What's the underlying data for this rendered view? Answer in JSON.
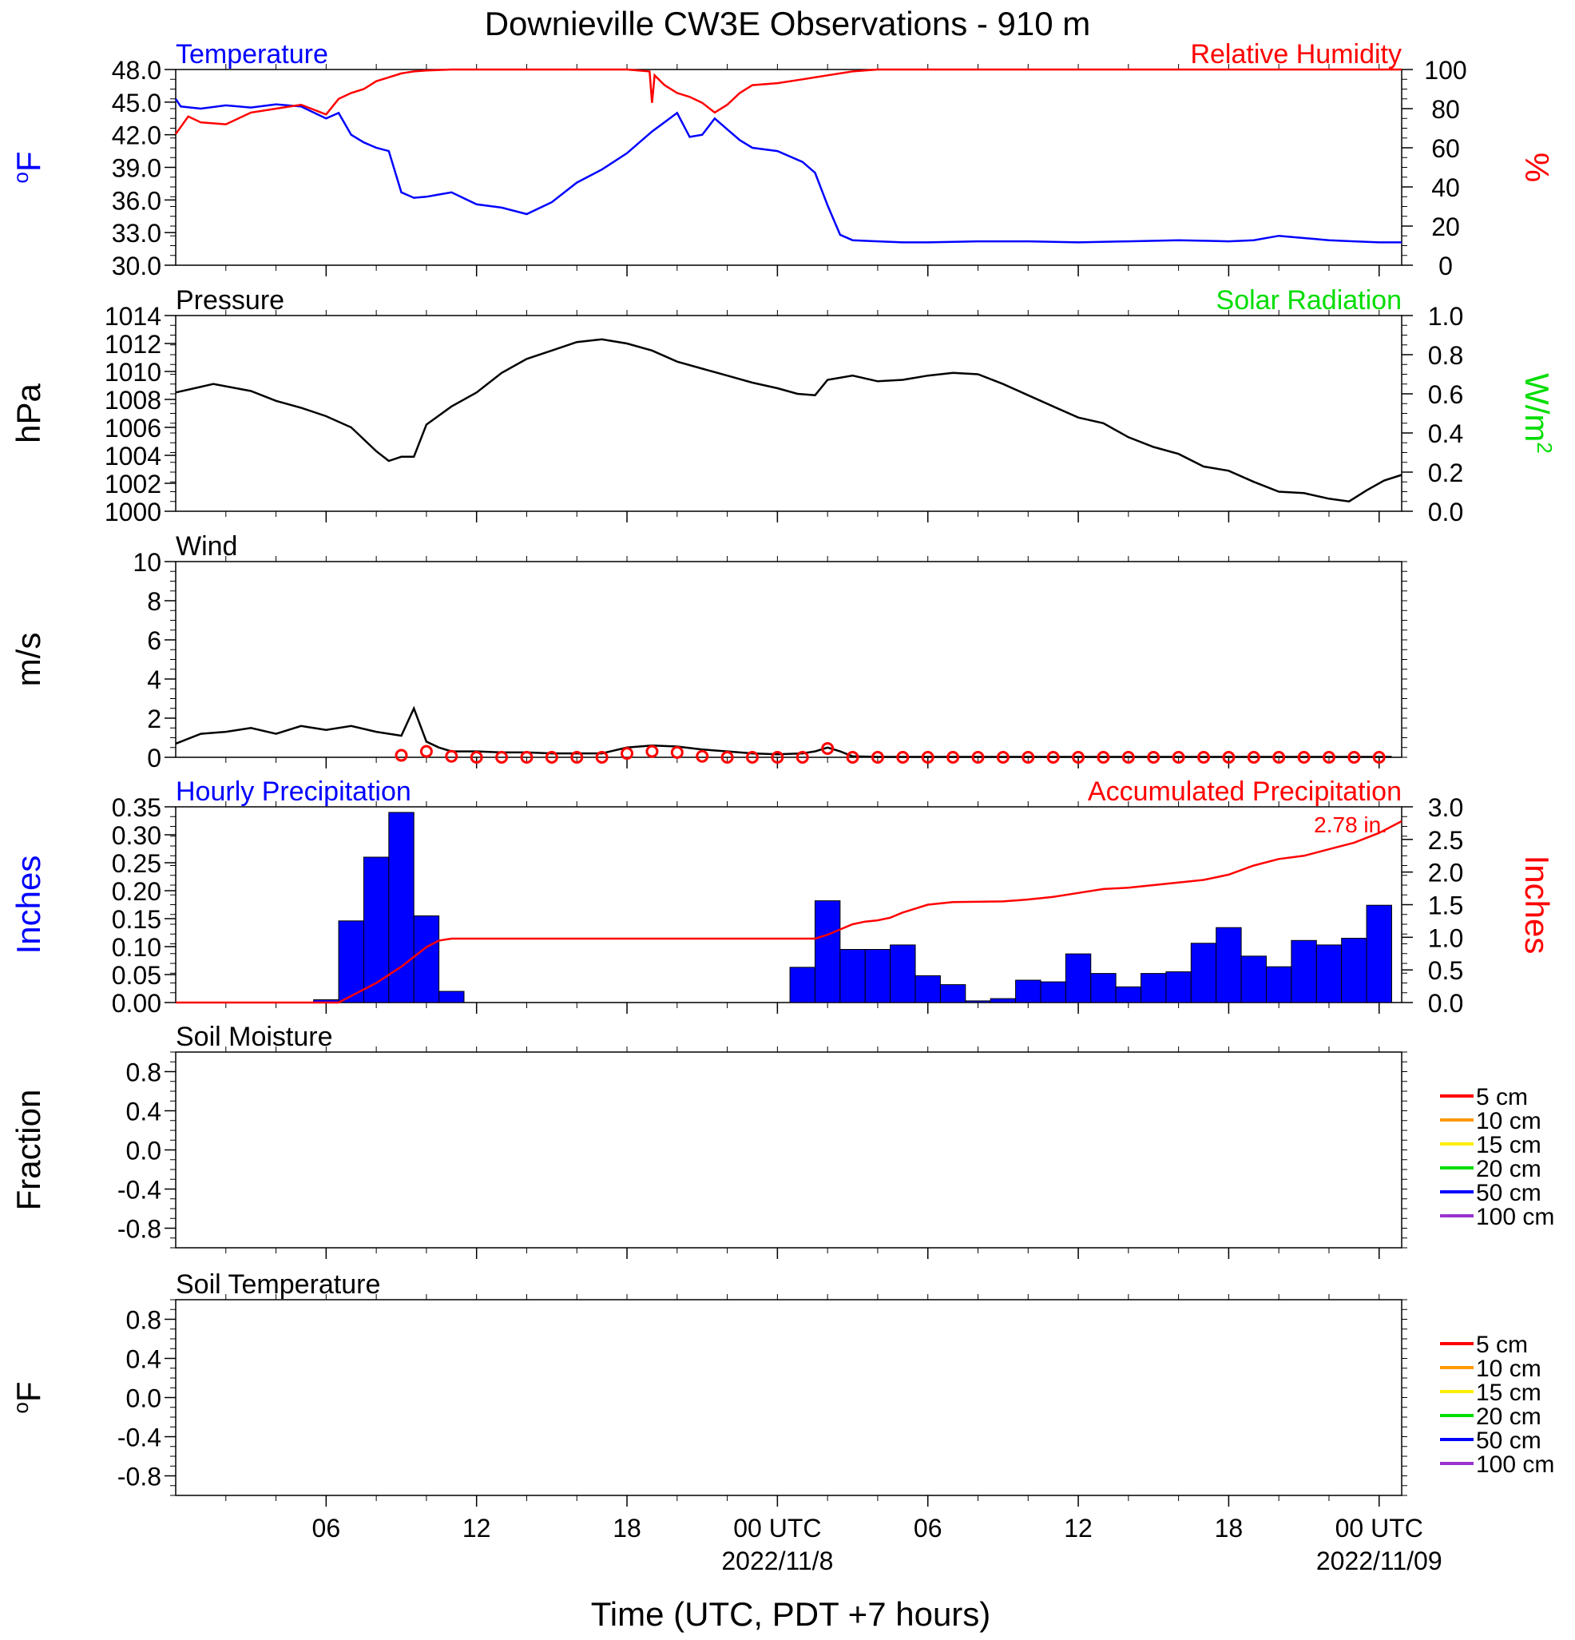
{
  "title": "Downieville CW3E Observations - 910 m",
  "xaxis": {
    "label": "Time (UTC, PDT +7 hours)",
    "range_hours": [
      -24,
      24.9
    ],
    "ticks": [
      {
        "h": -18,
        "label": "06"
      },
      {
        "h": -12,
        "label": "12"
      },
      {
        "h": -6,
        "label": "18"
      },
      {
        "h": 0,
        "label": "00 UTC",
        "sub": "2022/11/8"
      },
      {
        "h": 6,
        "label": "06"
      },
      {
        "h": 12,
        "label": "12"
      },
      {
        "h": 18,
        "label": "18"
      },
      {
        "h": 24,
        "label": "00 UTC",
        "sub": "2022/11/09"
      }
    ]
  },
  "colors": {
    "temperature": "#0000ff",
    "humidity": "#ff0000",
    "solar": "#00dd00",
    "pressure": "#000000",
    "bars": "#0000ff",
    "accum": "#ff0000"
  },
  "chart_data": [
    {
      "type": "line",
      "panel": "temperature",
      "title_left": "Temperature",
      "title_right": "Relative Humidity",
      "ylabel_left": "oF",
      "ylabel_right": "%",
      "yticks_left": [
        "30.0",
        "33.0",
        "36.0",
        "39.0",
        "42.0",
        "45.0",
        "48.0"
      ],
      "yticks_right": [
        "0",
        "20",
        "40",
        "60",
        "80",
        "100"
      ],
      "ylim_left": [
        30,
        48
      ],
      "ylim_right": [
        0,
        100
      ],
      "series": [
        {
          "name": "Temperature",
          "axis": "left",
          "x": [
            -24,
            -23.8,
            -23,
            -22,
            -21,
            -20,
            -19,
            -18,
            -17.5,
            -17,
            -16.5,
            -16,
            -15.5,
            -15,
            -14.5,
            -14,
            -13.5,
            -13,
            -12,
            -11,
            -10,
            -9,
            -8,
            -7,
            -6,
            -5,
            -4,
            -3.5,
            -3,
            -2.5,
            -2,
            -1.5,
            -1,
            0,
            1,
            1.5,
            2,
            2.5,
            3,
            4,
            5,
            6,
            8,
            10,
            12,
            14,
            16,
            18,
            19,
            20,
            21,
            22,
            23,
            24,
            24.9
          ],
          "y": [
            45.3,
            44.6,
            44.4,
            44.7,
            44.5,
            44.8,
            44.6,
            43.5,
            44,
            42,
            41.3,
            40.8,
            40.5,
            36.7,
            36.2,
            36.3,
            36.5,
            36.7,
            35.6,
            35.3,
            34.7,
            35.8,
            37.6,
            38.8,
            40.3,
            42.3,
            44,
            41.8,
            42,
            43.5,
            42.5,
            41.5,
            40.8,
            40.5,
            39.5,
            38.5,
            35.5,
            32.8,
            32.3,
            32.2,
            32.1,
            32.1,
            32.2,
            32.2,
            32.1,
            32.2,
            32.3,
            32.2,
            32.3,
            32.7,
            32.5,
            32.3,
            32.2,
            32.1,
            32.1
          ]
        },
        {
          "name": "Relative Humidity",
          "axis": "right",
          "x": [
            -24,
            -23.5,
            -23,
            -22,
            -21,
            -20,
            -19,
            -18,
            -17.5,
            -17,
            -16.5,
            -16,
            -15.5,
            -15,
            -14.5,
            -14,
            -13,
            -12,
            -10,
            -8,
            -6,
            -5.1,
            -5,
            -4.9,
            -4.5,
            -4,
            -3.5,
            -3,
            -2.5,
            -2,
            -1.5,
            -1,
            0,
            1,
            2,
            3,
            4,
            6,
            8,
            10,
            12,
            16,
            20,
            24.9
          ],
          "y": [
            67,
            76,
            73,
            72,
            78,
            80,
            82,
            77,
            85,
            88,
            90,
            94,
            96,
            98,
            99,
            99.5,
            100,
            100,
            100,
            100,
            100,
            99,
            83,
            97,
            92,
            88,
            86,
            83,
            78,
            82,
            88,
            92,
            93,
            95,
            97,
            99,
            100,
            100,
            100,
            100,
            100,
            100,
            100,
            100
          ]
        }
      ]
    },
    {
      "type": "line",
      "panel": "pressure",
      "title_left": "Pressure",
      "title_right": "Solar Radiation",
      "ylabel_left": "hPa",
      "ylabel_right": "W/m2",
      "yticks_left": [
        "1000",
        "1002",
        "1004",
        "1006",
        "1008",
        "1010",
        "1012",
        "1014"
      ],
      "yticks_right": [
        "0.0",
        "0.2",
        "0.4",
        "0.6",
        "0.8",
        "1.0"
      ],
      "ylim_left": [
        1000,
        1014
      ],
      "ylim_right": [
        0,
        1
      ],
      "series": [
        {
          "name": "Pressure",
          "axis": "left",
          "x": [
            -24,
            -22.5,
            -21,
            -20,
            -19,
            -18,
            -17,
            -16,
            -15.5,
            -15,
            -14.5,
            -14,
            -13,
            -12,
            -11,
            -10,
            -9,
            -8,
            -7,
            -6,
            -5,
            -4,
            -3,
            -2,
            -1,
            0,
            0.8,
            1.5,
            2,
            3,
            4,
            5,
            6,
            7,
            8,
            9,
            10,
            11,
            12,
            13,
            14,
            15,
            16,
            17,
            18,
            19,
            20,
            21,
            22,
            22.8,
            23.5,
            24.2,
            24.9
          ],
          "y": [
            1008.5,
            1009.1,
            1008.6,
            1007.9,
            1007.4,
            1006.8,
            1006.0,
            1004.3,
            1003.6,
            1003.9,
            1003.9,
            1006.2,
            1007.5,
            1008.5,
            1009.9,
            1010.9,
            1011.5,
            1012.1,
            1012.3,
            1012.0,
            1011.5,
            1010.7,
            1010.2,
            1009.7,
            1009.2,
            1008.8,
            1008.4,
            1008.3,
            1009.4,
            1009.7,
            1009.3,
            1009.4,
            1009.7,
            1009.9,
            1009.8,
            1009.1,
            1008.3,
            1007.5,
            1006.7,
            1006.3,
            1005.3,
            1004.6,
            1004.1,
            1003.2,
            1002.9,
            1002.1,
            1001.4,
            1001.3,
            1000.9,
            1000.7,
            1001.5,
            1002.2,
            1002.6
          ]
        },
        {
          "name": "Solar Radiation",
          "axis": "right",
          "x": [],
          "y": []
        }
      ]
    },
    {
      "type": "line",
      "panel": "wind",
      "title_left": "Wind",
      "ylabel_left": "m/s",
      "yticks_left": [
        "0",
        "2",
        "4",
        "6",
        "8",
        "10"
      ],
      "ylim_left": [
        0,
        10
      ],
      "series": [
        {
          "name": "Wind speed",
          "axis": "left",
          "x": [
            -24,
            -23,
            -22,
            -21,
            -20,
            -19,
            -18,
            -17,
            -16,
            -15,
            -14.5,
            -14,
            -13.5,
            -13,
            -12,
            -11,
            -10,
            -9,
            -8,
            -7,
            -6,
            -5,
            -4,
            -3,
            -2,
            -1,
            0,
            1,
            1.5,
            2,
            2.5,
            3,
            4,
            6,
            10,
            14,
            18,
            22,
            24.5
          ],
          "y": [
            0.7,
            1.2,
            1.3,
            1.5,
            1.2,
            1.6,
            1.4,
            1.6,
            1.3,
            1.1,
            2.5,
            0.8,
            0.5,
            0.3,
            0.3,
            0.25,
            0.25,
            0.2,
            0.2,
            0.2,
            0.5,
            0.6,
            0.55,
            0.4,
            0.3,
            0.2,
            0.15,
            0.2,
            0.3,
            0.5,
            0.3,
            0.05,
            0.02,
            0.02,
            0.02,
            0.02,
            0.02,
            0.02,
            0.02
          ]
        },
        {
          "name": "Wind gust markers",
          "axis": "left",
          "x": [
            -15,
            -14,
            -13,
            -12,
            -11,
            -10,
            -9,
            -8,
            -7,
            -6,
            -5,
            -4,
            -3,
            -2,
            -1,
            0,
            1,
            2,
            3,
            4,
            5,
            6,
            7,
            8,
            9,
            10,
            11,
            12,
            13,
            14,
            15,
            16,
            17,
            18,
            19,
            20,
            21,
            22,
            23,
            24
          ],
          "y": [
            0.1,
            0.3,
            0.05,
            0,
            0,
            0,
            0,
            0,
            0,
            0.2,
            0.3,
            0.25,
            0.05,
            0,
            0,
            0,
            0,
            0.45,
            0,
            0,
            0,
            0,
            0,
            0,
            0,
            0,
            0,
            0,
            0,
            0,
            0,
            0,
            0,
            0,
            0,
            0,
            0,
            0,
            0,
            0
          ]
        }
      ]
    },
    {
      "type": "bar",
      "panel": "precip",
      "title_left": "Hourly Precipitation",
      "title_right": "Accumulated Precipitation",
      "annotation": "2.78 in.",
      "ylabel_left": "Inches",
      "ylabel_right": "Inches",
      "yticks_left": [
        "0.00",
        "0.05",
        "0.10",
        "0.15",
        "0.20",
        "0.25",
        "0.30",
        "0.35"
      ],
      "yticks_right": [
        "0.0",
        "0.5",
        "1.0",
        "1.5",
        "2.0",
        "2.5",
        "3.0"
      ],
      "ylim_left": [
        0,
        0.35
      ],
      "ylim_right": [
        0,
        3
      ],
      "x": [
        -18,
        -17,
        -16,
        -15,
        -14,
        -13,
        -12,
        1,
        2,
        3,
        4,
        5,
        6,
        7,
        8,
        9,
        10,
        11,
        12,
        13,
        14,
        15,
        16,
        17,
        18,
        19,
        20,
        21,
        22,
        23,
        24
      ],
      "values": [
        0.005,
        0.146,
        0.26,
        0.34,
        0.155,
        0.02,
        0,
        0.063,
        0.182,
        0.095,
        0.095,
        0.103,
        0.048,
        0.032,
        0.003,
        0.007,
        0.04,
        0.037,
        0.087,
        0.052,
        0.028,
        0.052,
        0.055,
        0.106,
        0.134,
        0.083,
        0.064,
        0.111,
        0.103,
        0.115,
        0.174
      ],
      "accum": {
        "name": "Accumulated Precipitation",
        "axis": "right",
        "x": [
          -24,
          -17.5,
          -17,
          -16,
          -15,
          -14,
          -13.5,
          -13,
          -12,
          -6,
          0,
          1.5,
          2,
          2.5,
          3,
          3.5,
          4,
          4.5,
          5,
          5.5,
          6,
          7,
          9,
          10,
          11,
          12,
          13,
          14,
          15,
          16,
          17,
          18,
          19,
          20,
          21,
          22,
          23,
          24,
          24.9
        ],
        "y": [
          0,
          0,
          0.1,
          0.3,
          0.55,
          0.85,
          0.95,
          0.98,
          0.98,
          0.98,
          0.98,
          0.98,
          1.04,
          1.12,
          1.2,
          1.24,
          1.26,
          1.3,
          1.38,
          1.44,
          1.5,
          1.54,
          1.55,
          1.58,
          1.62,
          1.68,
          1.74,
          1.76,
          1.8,
          1.84,
          1.88,
          1.96,
          2.1,
          2.2,
          2.25,
          2.35,
          2.45,
          2.6,
          2.78
        ]
      }
    },
    {
      "type": "line",
      "panel": "soil_moisture",
      "title_left": "Soil Moisture",
      "ylabel_left": "Fraction",
      "yticks_left": [
        "-0.8",
        "-0.4",
        "0.0",
        "0.4",
        "0.8"
      ],
      "ylim_left": [
        -1,
        1
      ],
      "legend": [
        {
          "label": "5 cm",
          "color": "#ff0000"
        },
        {
          "label": "10 cm",
          "color": "#ff9900"
        },
        {
          "label": "15 cm",
          "color": "#ffee00"
        },
        {
          "label": "20 cm",
          "color": "#00dd00"
        },
        {
          "label": "50 cm",
          "color": "#0000ff"
        },
        {
          "label": "100 cm",
          "color": "#9933cc"
        }
      ],
      "series": []
    },
    {
      "type": "line",
      "panel": "soil_temperature",
      "title_left": "Soil Temperature",
      "ylabel_left": "oF",
      "yticks_left": [
        "-0.8",
        "-0.4",
        "0.0",
        "0.4",
        "0.8"
      ],
      "ylim_left": [
        -1,
        1
      ],
      "legend": [
        {
          "label": "5 cm",
          "color": "#ff0000"
        },
        {
          "label": "10 cm",
          "color": "#ff9900"
        },
        {
          "label": "15 cm",
          "color": "#ffee00"
        },
        {
          "label": "20 cm",
          "color": "#00dd00"
        },
        {
          "label": "50 cm",
          "color": "#0000ff"
        },
        {
          "label": "100 cm",
          "color": "#9933cc"
        }
      ],
      "series": []
    }
  ]
}
